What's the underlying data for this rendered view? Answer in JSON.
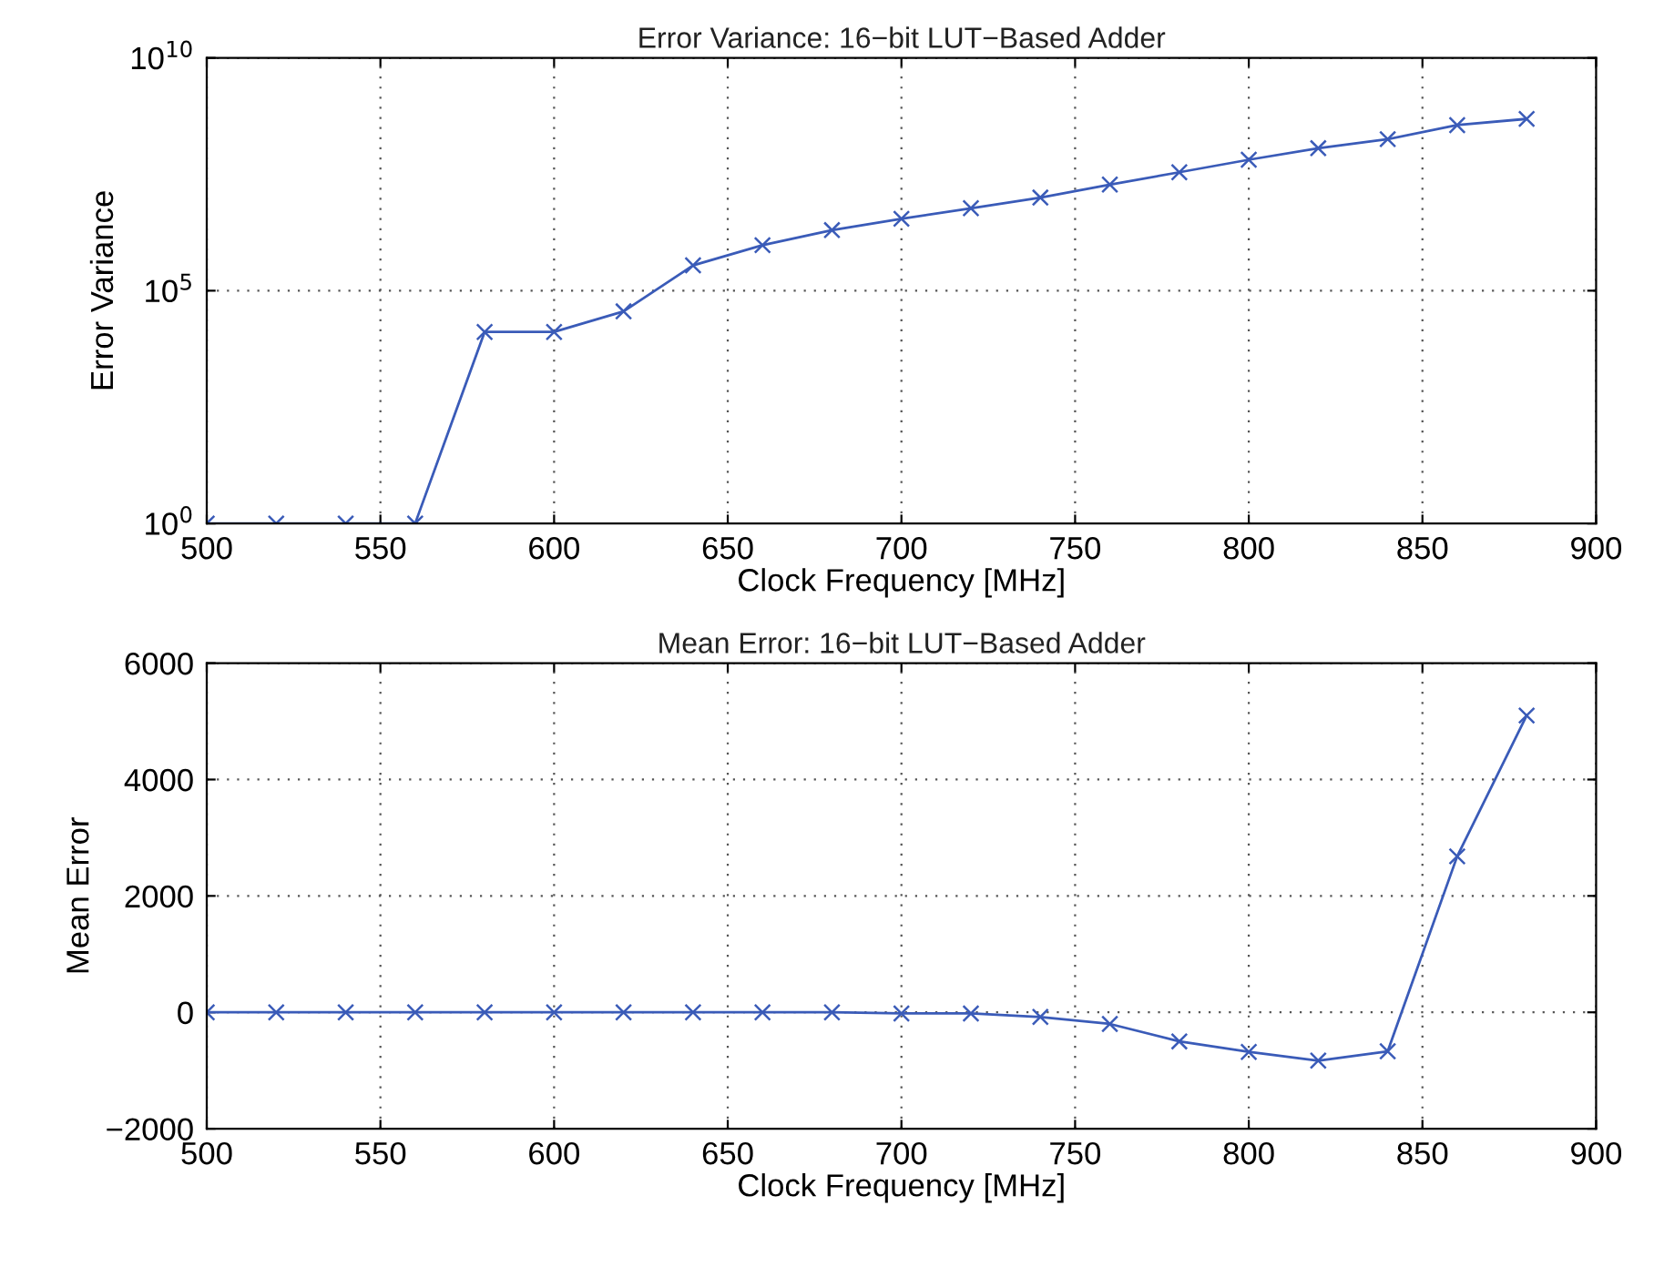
{
  "chart_data": [
    {
      "type": "line",
      "title": "Error Variance: 16−bit LUT−Based Adder",
      "xlabel": "Clock Frequency [MHz]",
      "ylabel": "Error Variance",
      "x": [
        500,
        520,
        540,
        560,
        580,
        600,
        620,
        640,
        660,
        680,
        700,
        720,
        740,
        760,
        780,
        800,
        820,
        840,
        860,
        880
      ],
      "series": [
        {
          "color": "#3a5bb8",
          "values": [
            1,
            1,
            1,
            1,
            13000,
            13000,
            36000,
            350000,
            950000,
            2000000,
            3500000,
            5900000,
            10000000,
            19000000,
            35000000,
            65000000,
            115000000,
            180000000,
            360000000,
            490000000
          ]
        }
      ],
      "log": "y",
      "xlim": [
        500,
        900
      ],
      "xticks": [
        500,
        550,
        600,
        650,
        700,
        750,
        800,
        850,
        900
      ],
      "ylim": [
        1,
        10000000000
      ],
      "yticks": [
        {
          "value": 1,
          "label": "10$^{0}$"
        },
        {
          "value": 100000,
          "label": "10$^{5}$"
        },
        {
          "value": 10000000000,
          "label": "10$^{10}$"
        }
      ],
      "grid": true,
      "marker": "cross",
      "line_style": "solid"
    },
    {
      "type": "line",
      "title": "Mean Error: 16−bit LUT−Based Adder",
      "xlabel": "Clock Frequency [MHz]",
      "ylabel": "Mean Error",
      "x": [
        500,
        520,
        540,
        560,
        580,
        600,
        620,
        640,
        660,
        680,
        700,
        720,
        740,
        760,
        780,
        800,
        820,
        840,
        860,
        880
      ],
      "series": [
        {
          "color": "#3a5bb8",
          "values": [
            0,
            0,
            0,
            0,
            0,
            0,
            0,
            0,
            0,
            0,
            -20,
            -20,
            -80,
            -200,
            -500,
            -680,
            -830,
            -670,
            2680,
            5100
          ]
        }
      ],
      "xlim": [
        500,
        900
      ],
      "xticks": [
        500,
        550,
        600,
        650,
        700,
        750,
        800,
        850,
        900
      ],
      "ylim": [
        -2000,
        6000
      ],
      "yticks": [
        {
          "value": -2000,
          "label": "−2000"
        },
        0,
        2000,
        4000,
        6000
      ],
      "grid": true,
      "marker": "cross",
      "line_style": "solid"
    }
  ]
}
